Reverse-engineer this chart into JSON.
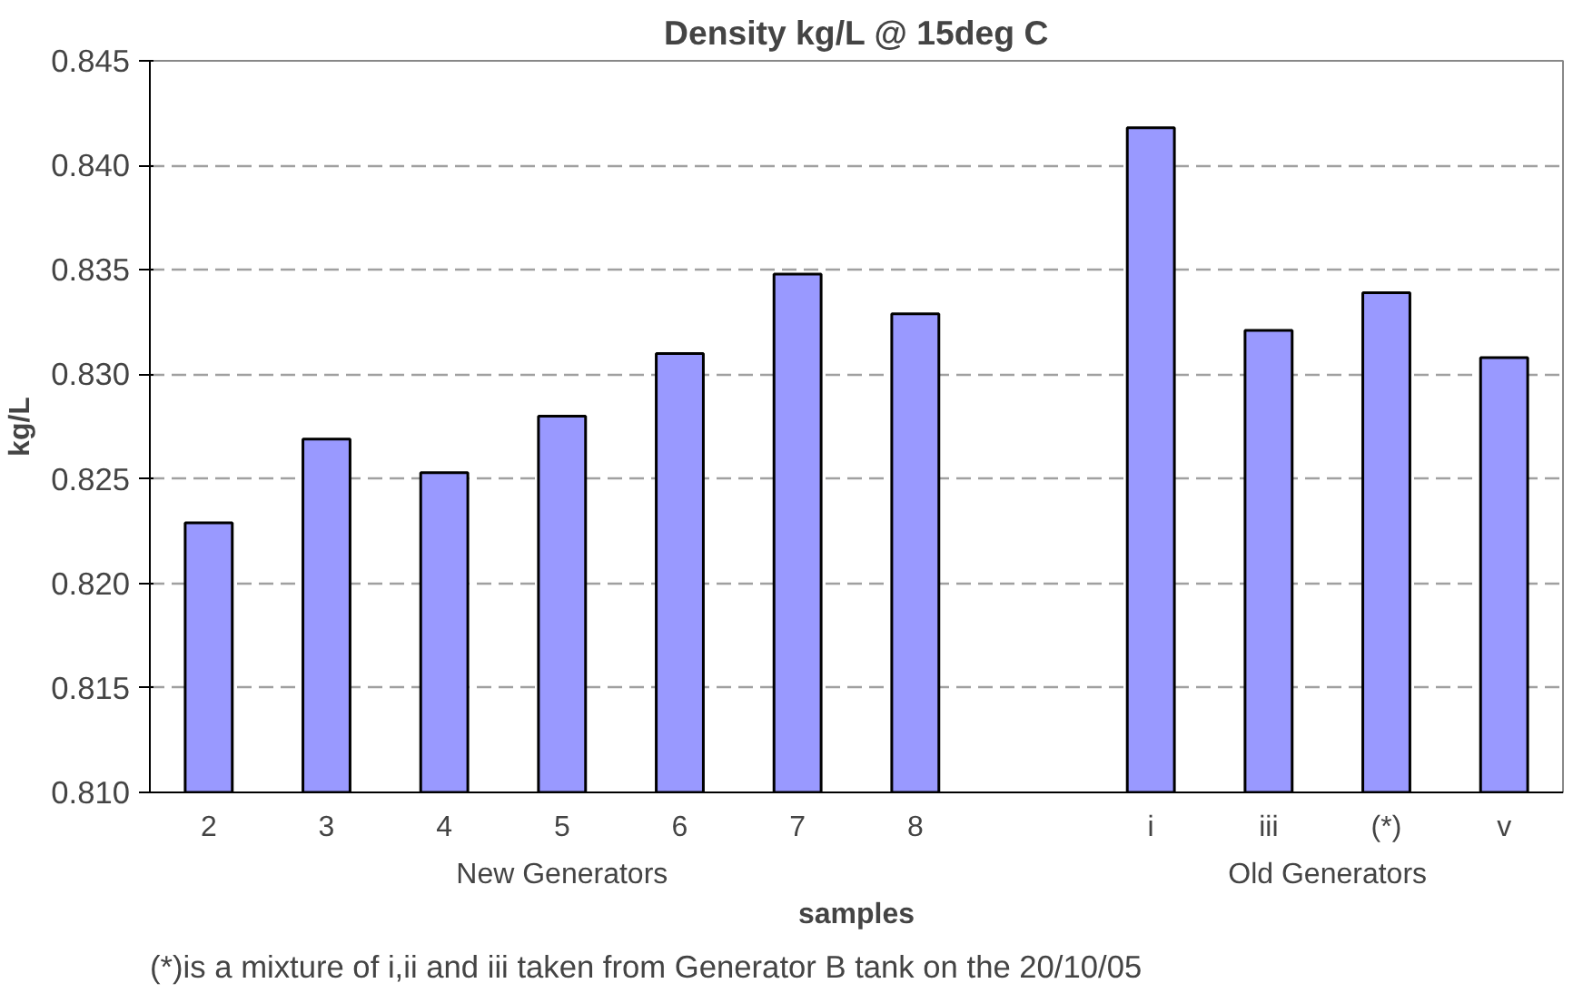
{
  "chart_data": {
    "type": "bar",
    "title": "Density kg/L @ 15deg C",
    "xlabel": "samples",
    "ylabel": "kg/L",
    "categories": [
      "2",
      "3",
      "4",
      "5",
      "6",
      "7",
      "8",
      null,
      "i",
      "iii",
      "(*)",
      "v"
    ],
    "values": [
      0.8229,
      0.8269,
      0.8253,
      0.828,
      0.831,
      0.8348,
      0.8329,
      null,
      0.8418,
      0.8321,
      0.8339,
      0.8308
    ],
    "color": "#9999ff",
    "ylim": [
      0.81,
      0.845
    ],
    "yticks": [
      {
        "value": 0.81,
        "label": "0.810"
      },
      {
        "value": 0.815,
        "label": "0.815"
      },
      {
        "value": 0.82,
        "label": "0.820"
      },
      {
        "value": 0.825,
        "label": "0.825"
      },
      {
        "value": 0.83,
        "label": "0.830"
      },
      {
        "value": 0.835,
        "label": "0.835"
      },
      {
        "value": 0.84,
        "label": "0.840"
      },
      {
        "value": 0.845,
        "label": "0.845"
      }
    ],
    "grid": "y",
    "annotations": [
      "New Generators",
      "Old Generators",
      "(*)is a mixture of i,ii and iii taken from Generator B tank on the 20/10/05"
    ]
  }
}
